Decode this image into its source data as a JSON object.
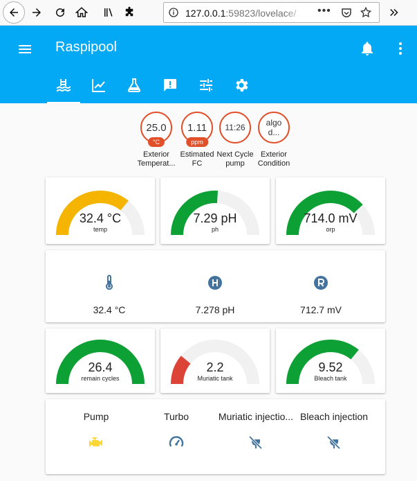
{
  "browser": {
    "url_host": "127.0.0.1",
    "url_rest": ":59823/lovelace/"
  },
  "header": {
    "title": "Raspipool"
  },
  "tabs": [
    {
      "icon": "pool-icon",
      "active": true
    },
    {
      "icon": "chart-line-icon",
      "active": false
    },
    {
      "icon": "flask-icon",
      "active": false
    },
    {
      "icon": "alert-message-icon",
      "active": false
    },
    {
      "icon": "tune-icon",
      "active": false
    },
    {
      "icon": "settings-icon",
      "active": false
    }
  ],
  "badges": [
    {
      "value": "25.0",
      "unit": "°C",
      "label": "Exterior Temperat..."
    },
    {
      "value": "1.11",
      "unit": "ppm",
      "label": "Estimated FC"
    },
    {
      "value": "11:26",
      "unit": "",
      "label": "Next Cycle pump"
    },
    {
      "value": "algo d...",
      "unit": "",
      "label": "Exterior Condition"
    }
  ],
  "gauges_top": [
    {
      "value_text": "32.4 °C",
      "name": "temp",
      "fraction": 0.72,
      "color": "#f4b400"
    },
    {
      "value_text": "7.29 pH",
      "name": "ph",
      "fraction": 0.52,
      "color": "#0da035"
    },
    {
      "value_text": "714.0 mV",
      "name": "orp",
      "fraction": 0.76,
      "color": "#0da035"
    }
  ],
  "sensors": [
    {
      "icon": "thermometer-icon",
      "value": "32.4 °C"
    },
    {
      "icon": "alpha-h-circle-icon",
      "value": "7.278 pH"
    },
    {
      "icon": "alpha-r-circle-icon",
      "value": "712.7 mV"
    }
  ],
  "gauges_bottom": [
    {
      "value_text": "26.4",
      "name": "remain cycles",
      "fraction": 1.0,
      "color": "#0da035"
    },
    {
      "value_text": "2.2",
      "name": "Muriatic tank",
      "fraction": 0.22,
      "color": "#db4437"
    },
    {
      "value_text": "9.52",
      "name": "Bleach tank",
      "fraction": 0.72,
      "color": "#0da035"
    }
  ],
  "switches": [
    {
      "label": "Pump",
      "icon": "engine-icon",
      "color": "#fdd835"
    },
    {
      "label": "Turbo",
      "icon": "speedometer-icon",
      "color": "#44739e"
    },
    {
      "label": "Muriatic injectio...",
      "icon": "power-plug-off-icon",
      "color": "#44739e"
    },
    {
      "label": "Bleach injection",
      "icon": "power-plug-off-icon",
      "color": "#44739e"
    }
  ],
  "colors": {
    "header": "#03a9f4",
    "badge_ring": "#e0502a",
    "gauge_track": "#f1f1f1",
    "icon_blue": "#44739e"
  }
}
